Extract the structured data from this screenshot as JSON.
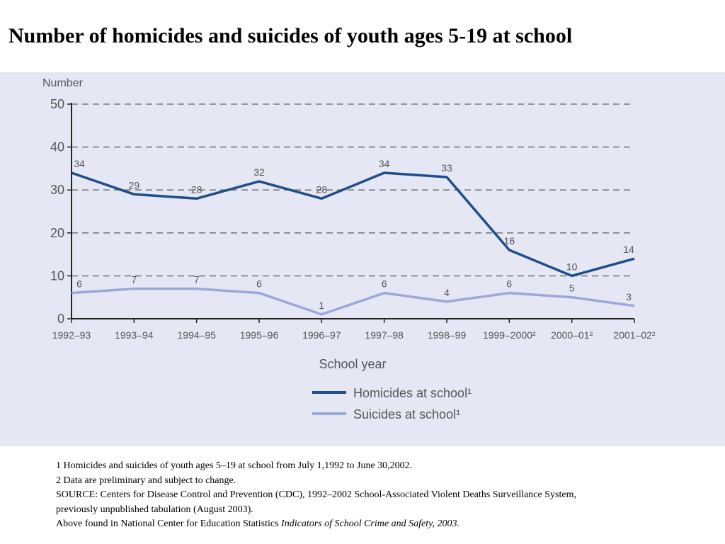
{
  "title": "Number of homicides and suicides of youth ages 5-19 at school",
  "chart_data": {
    "type": "line",
    "title": "Number of homicides and suicides of youth ages 5-19 at school",
    "ylabel": "Number",
    "xlabel": "School year",
    "ylim": [
      0,
      50
    ],
    "yticks": [
      0,
      10,
      20,
      30,
      40,
      50
    ],
    "grid": true,
    "categories": [
      "1992–93",
      "1993–94",
      "1994–95",
      "1995–96",
      "1996–97",
      "1997–98",
      "1998–99",
      "1999–2000²",
      "2000–01²",
      "2001–02²"
    ],
    "series": [
      {
        "name": "Homicides at school¹",
        "color": "#1f4e8c",
        "values": [
          34,
          29,
          28,
          32,
          28,
          34,
          33,
          16,
          10,
          14
        ]
      },
      {
        "name": "Suicides at school¹",
        "color": "#9aa9d8",
        "values": [
          6,
          7,
          7,
          6,
          1,
          6,
          4,
          6,
          5,
          3
        ]
      }
    ],
    "legend": "bottom-center"
  },
  "footnotes": {
    "line1": "1 Homicides and suicides of youth ages 5–19 at school from July 1,1992 to June 30,2002.",
    "line2": "2 Data are preliminary and subject to change.",
    "line3": "SOURCE: Centers for Disease Control and Prevention (CDC), 1992–2002 School-Associated Violent Deaths Surveillance System,",
    "line4": "previously unpublished tabulation (August 2003).",
    "line5_prefix": "Above found in National Center for Education Statistics ",
    "line5_italic": "Indicators of School Crime and Safety, 2003."
  }
}
